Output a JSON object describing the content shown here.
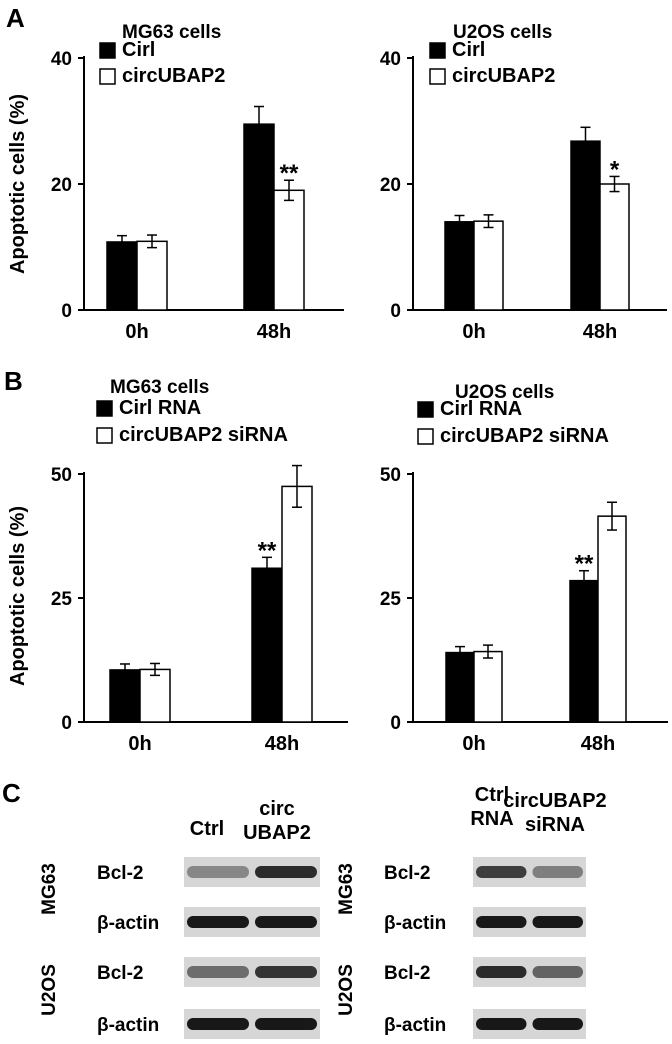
{
  "panels": {
    "A": {
      "letter": "A"
    },
    "B": {
      "letter": "B"
    },
    "C": {
      "letter": "C"
    }
  },
  "chart_data": [
    {
      "panel": "A",
      "type": "bar",
      "title": "MG63 cells",
      "ylabel": "Apoptotic cells (%)",
      "ylim": [
        0,
        40
      ],
      "yticks": [
        0,
        20,
        40
      ],
      "categories": [
        "0h",
        "48h"
      ],
      "series": [
        {
          "name": "Cirl",
          "values": [
            10.8,
            29.5
          ],
          "errors": [
            1.0,
            2.8
          ],
          "fill": "#000000"
        },
        {
          "name": "circUBAP2",
          "values": [
            10.9,
            19.0
          ],
          "errors": [
            1.0,
            1.6
          ],
          "fill": "#ffffff"
        }
      ],
      "annotations": [
        {
          "category": 1,
          "series": 1,
          "text": "**"
        }
      ],
      "legend": "top-left",
      "grid": false
    },
    {
      "panel": "A",
      "type": "bar",
      "title": "U2OS cells",
      "ylabel": "",
      "ylim": [
        0,
        40
      ],
      "yticks": [
        0,
        20,
        40
      ],
      "categories": [
        "0h",
        "48h"
      ],
      "series": [
        {
          "name": "Cirl",
          "values": [
            14.0,
            26.8
          ],
          "errors": [
            1.0,
            2.2
          ],
          "fill": "#000000"
        },
        {
          "name": "circUBAP2",
          "values": [
            14.1,
            20.0
          ],
          "errors": [
            1.0,
            1.2
          ],
          "fill": "#ffffff"
        }
      ],
      "annotations": [
        {
          "category": 1,
          "series": 1,
          "text": "*"
        }
      ],
      "legend": "top-left",
      "grid": false
    },
    {
      "panel": "B",
      "type": "bar",
      "title": "MG63 cells",
      "ylabel": "Apoptotic cells (%)",
      "ylim": [
        0,
        50
      ],
      "yticks": [
        0,
        25,
        50
      ],
      "categories": [
        "0h",
        "48h"
      ],
      "series": [
        {
          "name": "Cirl RNA",
          "values": [
            10.5,
            31.0
          ],
          "errors": [
            1.2,
            2.2
          ],
          "fill": "#000000"
        },
        {
          "name": "circUBAP2 siRNA",
          "values": [
            10.6,
            47.5
          ],
          "errors": [
            1.2,
            4.2
          ],
          "fill": "#ffffff"
        }
      ],
      "annotations": [
        {
          "category": 1,
          "series": 0,
          "text": "**"
        }
      ],
      "legend": "top-left",
      "grid": false
    },
    {
      "panel": "B",
      "type": "bar",
      "title": "U2OS cells",
      "ylabel": "",
      "ylim": [
        0,
        50
      ],
      "yticks": [
        0,
        25,
        50
      ],
      "categories": [
        "0h",
        "48h"
      ],
      "series": [
        {
          "name": "Cirl RNA",
          "values": [
            14.0,
            28.5
          ],
          "errors": [
            1.2,
            2.0
          ],
          "fill": "#000000"
        },
        {
          "name": "circUBAP2 siRNA",
          "values": [
            14.2,
            41.5
          ],
          "errors": [
            1.3,
            2.8
          ],
          "fill": "#ffffff"
        }
      ],
      "annotations": [
        {
          "category": 1,
          "series": 0,
          "text": "**"
        }
      ],
      "legend": "top-left",
      "grid": false
    }
  ],
  "blots": {
    "left": {
      "columns": [
        "Ctrl",
        "circ\nUBAP2"
      ],
      "rows": [
        {
          "cell_line": "MG63",
          "protein": "Bcl-2",
          "intensities": [
            0.35,
            0.85
          ]
        },
        {
          "cell_line": "MG63",
          "protein": "β-actin",
          "intensities": [
            0.95,
            0.95
          ]
        },
        {
          "cell_line": "U2OS",
          "protein": "Bcl-2",
          "intensities": [
            0.5,
            0.8
          ]
        },
        {
          "cell_line": "U2OS",
          "protein": "β-actin",
          "intensities": [
            0.95,
            0.95
          ]
        }
      ]
    },
    "right": {
      "columns": [
        "Ctrl\nRNA",
        "circUBAP2\nsiRNA"
      ],
      "rows": [
        {
          "cell_line": "MG63",
          "protein": "Bcl-2",
          "intensities": [
            0.75,
            0.4
          ]
        },
        {
          "cell_line": "MG63",
          "protein": "β-actin",
          "intensities": [
            0.95,
            0.95
          ]
        },
        {
          "cell_line": "U2OS",
          "protein": "Bcl-2",
          "intensities": [
            0.85,
            0.55
          ]
        },
        {
          "cell_line": "U2OS",
          "protein": "β-actin",
          "intensities": [
            0.95,
            0.95
          ]
        }
      ]
    }
  }
}
